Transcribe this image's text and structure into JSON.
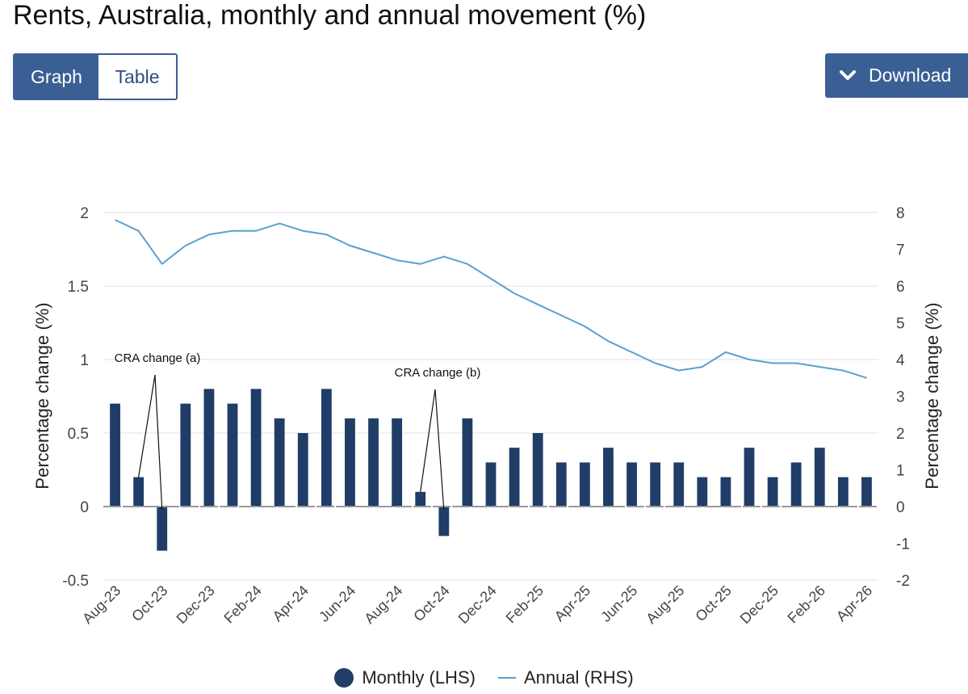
{
  "header": {
    "title": "Rents, Australia, monthly and annual movement (%)",
    "tabs": [
      {
        "label": "Graph",
        "active": true
      },
      {
        "label": "Table",
        "active": false
      }
    ],
    "download_label": "Download",
    "download_icon": "chevron-down-icon"
  },
  "colors": {
    "accent": "#3a5f94",
    "bar": "#1f3d66",
    "line": "#5aa0d0",
    "grid": "#dde2ea",
    "zero": "#999999"
  },
  "chart_data": {
    "type": "bar",
    "title": "Rents, Australia, monthly and annual movement (%)",
    "categories": [
      "Aug-23",
      "Sep-23",
      "Oct-23",
      "Nov-23",
      "Dec-23",
      "Jan-24",
      "Feb-24",
      "Mar-24",
      "Apr-24",
      "May-24",
      "Jun-24",
      "Jul-24",
      "Aug-24",
      "Sep-24",
      "Oct-24",
      "Nov-24",
      "Dec-24",
      "Jan-25",
      "Feb-25",
      "Mar-25",
      "Apr-25",
      "May-25",
      "Jun-25",
      "Jul-25",
      "Aug-25",
      "Sep-25",
      "Oct-25",
      "Nov-25",
      "Dec-25",
      "Jan-26",
      "Feb-26",
      "Mar-26",
      "Apr-26"
    ],
    "x_tick_labels": [
      "Aug-23",
      "Oct-23",
      "Dec-23",
      "Feb-24",
      "Apr-24",
      "Jun-24",
      "Aug-24",
      "Oct-24",
      "Dec-24",
      "Feb-25",
      "Apr-25",
      "Jun-25",
      "Aug-25",
      "Oct-25",
      "Dec-25",
      "Feb-26",
      "Apr-26"
    ],
    "series": [
      {
        "name": "Monthly (LHS)",
        "type": "bar",
        "axis": "left",
        "values": [
          0.7,
          0.2,
          -0.3,
          0.7,
          0.8,
          0.7,
          0.8,
          0.6,
          0.5,
          0.8,
          0.6,
          0.6,
          0.6,
          0.1,
          -0.2,
          0.6,
          0.3,
          0.4,
          0.5,
          0.3,
          0.3,
          0.4,
          0.3,
          0.3,
          0.3,
          0.2,
          0.2,
          0.4,
          0.2,
          0.3,
          0.4,
          0.2,
          0.2
        ]
      },
      {
        "name": "Annual (RHS)",
        "type": "line",
        "axis": "right",
        "values": [
          7.8,
          7.5,
          6.6,
          7.1,
          7.4,
          7.5,
          7.5,
          7.7,
          7.5,
          7.4,
          7.1,
          6.9,
          6.7,
          6.6,
          6.8,
          6.6,
          6.2,
          5.8,
          5.5,
          5.2,
          4.9,
          4.5,
          4.2,
          3.9,
          3.7,
          3.8,
          4.2,
          4.0,
          3.9,
          3.9,
          3.8,
          3.7,
          3.5
        ]
      }
    ],
    "ylabel": "Percentage change (%)",
    "ylabel_right": "Percentage change (%)",
    "ylim": [
      -0.5,
      2
    ],
    "ylim_right": [
      -2,
      8
    ],
    "yticks": [
      "2",
      "1.5",
      "1",
      "0.5",
      "0",
      "-0.5"
    ],
    "yticks_right": [
      "8",
      "7",
      "6",
      "5",
      "4",
      "3",
      "2",
      "1",
      "0",
      "-1",
      "-2"
    ],
    "grid": true,
    "legend_position": "bottom",
    "annotations": [
      {
        "text": "CRA change (a)",
        "targets": [
          "Sep-23",
          "Oct-23"
        ]
      },
      {
        "text": "CRA change (b)",
        "targets": [
          "Sep-24",
          "Oct-24"
        ]
      }
    ]
  }
}
